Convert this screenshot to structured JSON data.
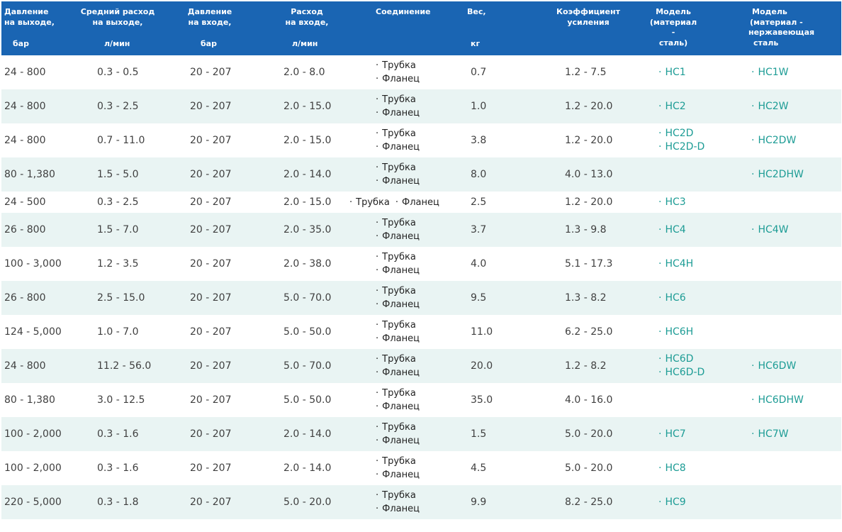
{
  "header": {
    "out_pressure": [
      "Давление",
      "на выходе,"
    ],
    "out_pressure_unit": "бар",
    "avg_flow": [
      "Средний расход",
      "на выходе,"
    ],
    "avg_flow_unit": "л/мин",
    "in_pressure": [
      "Давление",
      "на входе,"
    ],
    "in_pressure_unit": "бар",
    "in_flow": [
      "Расход",
      "на входе,"
    ],
    "in_flow_unit": "л/мин",
    "connection": "Соединение",
    "weight": "Вес,",
    "weight_unit": "кг",
    "gain": [
      "Коэффициент",
      "усиления"
    ],
    "model_steel": [
      "Модель",
      "(материал -",
      "сталь)"
    ],
    "model_stainless": [
      "Модель",
      "(материал -",
      "нержавеющая",
      "сталь"
    ]
  },
  "bullet": "·",
  "rows": [
    {
      "out": "24 - 800",
      "avg": "0.3 - 0.5",
      "inp": "20 - 207",
      "inflow": "2.0 - 8.0",
      "conn": [
        "Трубка",
        "Фланец"
      ],
      "weight": "0.7",
      "gain": "1.2 - 7.5",
      "steel": [
        "HC1"
      ],
      "stainless": [
        "HC1W"
      ]
    },
    {
      "out": "24 - 800",
      "avg": "0.3 - 2.5",
      "inp": "20 - 207",
      "inflow": "2.0 - 15.0",
      "conn": [
        "Трубка",
        "Фланец"
      ],
      "weight": "1.0",
      "gain": "1.2 - 20.0",
      "steel": [
        "HC2"
      ],
      "stainless": [
        "HC2W"
      ]
    },
    {
      "out": "24 - 800",
      "avg": "0.7 - 11.0",
      "inp": "20 - 207",
      "inflow": "2.0 - 15.0",
      "conn": [
        "Трубка",
        "Фланец"
      ],
      "weight": "3.8",
      "gain": "1.2 - 20.0",
      "steel": [
        "HC2D",
        "HC2D-D"
      ],
      "stainless": [
        "HC2DW"
      ]
    },
    {
      "out": "80 - 1,380",
      "avg": "1.5 - 5.0",
      "inp": "20 - 207",
      "inflow": "2.0 - 14.0",
      "conn": [
        "Трубка",
        "Фланец"
      ],
      "weight": "8.0",
      "gain": "4.0 - 13.0",
      "steel": [],
      "stainless": [
        "HC2DHW"
      ]
    },
    {
      "out": "24 - 500",
      "avg": "0.3 - 2.5",
      "inp": "20 - 207",
      "inflow": "2.0 - 15.0",
      "conn": [
        "Трубка",
        "Фланец"
      ],
      "conn_inline": true,
      "weight": "2.5",
      "gain": "1.2 - 20.0",
      "steel": [
        "HC3"
      ],
      "stainless": []
    },
    {
      "out": "26 - 800",
      "avg": "1.5 - 7.0",
      "inp": "20 - 207",
      "inflow": "2.0 - 35.0",
      "conn": [
        "Трубка",
        "Фланец"
      ],
      "weight": "3.7",
      "gain": "1.3 - 9.8",
      "steel": [
        "HC4"
      ],
      "stainless": [
        "HC4W"
      ]
    },
    {
      "out": "100 - 3,000",
      "avg": "1.2 - 3.5",
      "inp": "20 - 207",
      "inflow": "2.0 - 38.0",
      "conn": [
        "Трубка",
        "Фланец"
      ],
      "weight": "4.0",
      "gain": "5.1 - 17.3",
      "steel": [
        "HC4H"
      ],
      "stainless": []
    },
    {
      "out": "26 - 800",
      "avg": "2.5 - 15.0",
      "inp": "20 - 207",
      "inflow": "5.0 - 70.0",
      "conn": [
        "Трубка",
        "Фланец"
      ],
      "weight": "9.5",
      "gain": "1.3 - 8.2",
      "steel": [
        "HC6"
      ],
      "stainless": []
    },
    {
      "out": "124 - 5,000",
      "avg": "1.0 - 7.0",
      "inp": "20 - 207",
      "inflow": "5.0 - 50.0",
      "conn": [
        "Трубка",
        "Фланец"
      ],
      "weight": "11.0",
      "gain": "6.2 - 25.0",
      "steel": [
        "HC6H"
      ],
      "stainless": []
    },
    {
      "out": "24 - 800",
      "avg": "11.2 - 56.0",
      "inp": "20 - 207",
      "inflow": "5.0 - 70.0",
      "conn": [
        "Трубка",
        "Фланец"
      ],
      "weight": "20.0",
      "gain": "1.2 - 8.2",
      "steel": [
        "HC6D",
        "HC6D-D"
      ],
      "stainless": [
        "HC6DW"
      ]
    },
    {
      "out": "80 - 1,380",
      "avg": "3.0 - 12.5",
      "inp": "20 - 207",
      "inflow": "5.0 - 50.0",
      "conn": [
        "Трубка",
        "Фланец"
      ],
      "weight": "35.0",
      "gain": "4.0 - 16.0",
      "steel": [],
      "stainless": [
        "HC6DHW"
      ]
    },
    {
      "out": "100 - 2,000",
      "avg": "0.3 - 1.6",
      "inp": "20 - 207",
      "inflow": "2.0 - 14.0",
      "conn": [
        "Трубка",
        "Фланец"
      ],
      "weight": "1.5",
      "gain": "5.0 - 20.0",
      "steel": [
        "HC7"
      ],
      "stainless": [
        "HC7W"
      ]
    },
    {
      "out": "100 - 2,000",
      "avg": "0.3 - 1.6",
      "inp": "20 - 207",
      "inflow": "2.0 - 14.0",
      "conn": [
        "Трубка",
        "Фланец"
      ],
      "weight": "4.5",
      "gain": "5.0 - 20.0",
      "steel": [
        "HC8"
      ],
      "stainless": []
    },
    {
      "out": "220 - 5,000",
      "avg": "0.3 - 1.8",
      "inp": "20 - 207",
      "inflow": "5.0 - 20.0",
      "conn": [
        "Трубка",
        "Фланец"
      ],
      "weight": "9.9",
      "gain": "8.2 - 25.0",
      "steel": [
        "HC9"
      ],
      "stainless": []
    }
  ],
  "colors": {
    "header_bg": "#1a65b3",
    "alt_row_bg": "#e9f4f3",
    "link": "#1d9c95",
    "text": "#404040"
  }
}
